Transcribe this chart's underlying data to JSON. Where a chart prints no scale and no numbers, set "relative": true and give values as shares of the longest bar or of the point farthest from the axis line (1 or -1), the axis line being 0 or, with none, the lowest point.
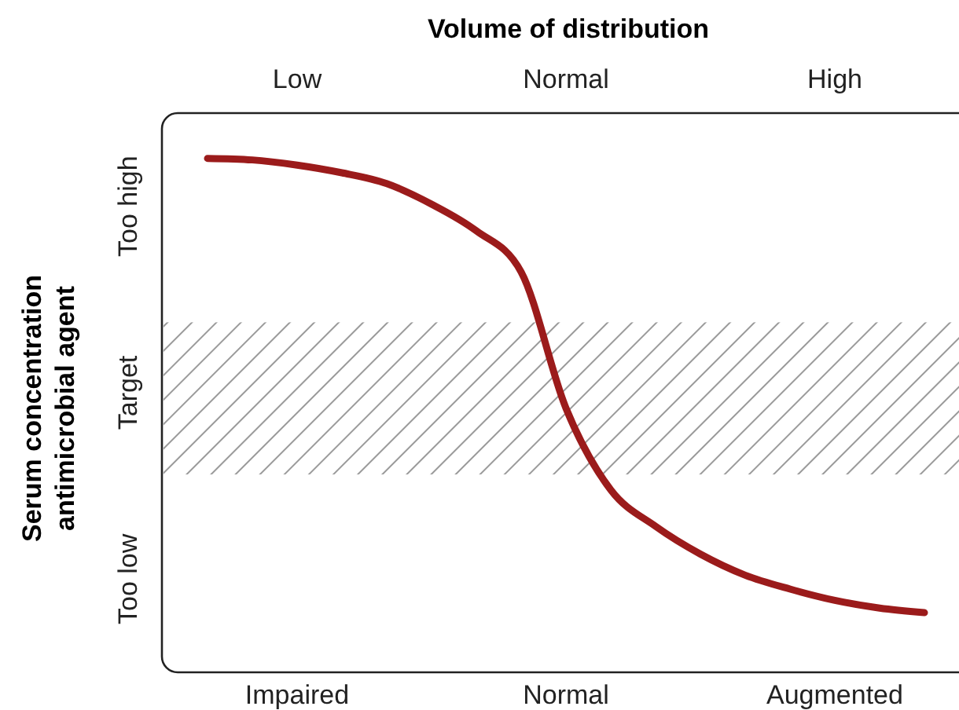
{
  "chart_data": {
    "type": "line",
    "relative": true,
    "x2label": "Volume of distribution",
    "ylabel": "Serum concentration\nantimicrobial agent",
    "categories": [
      null,
      null,
      "Impaired",
      null,
      null,
      null,
      null,
      null,
      "Normal",
      null,
      null,
      null,
      null,
      null,
      "Augmented",
      null,
      null
    ],
    "annotations": [
      "Low",
      "Normal",
      "High"
    ],
    "y_categories": [
      "Too high",
      "Target",
      "Too low"
    ],
    "values": [
      1,
      0.997,
      0.987,
      0.972,
      0.951,
      0.911,
      0.859,
      0.779,
      0.514,
      0.355,
      0.284,
      0.23,
      0.189,
      0.162,
      0.14,
      0.125,
      0.116
    ],
    "color": "#9b1b1b",
    "bands": [
      {
        "axis": "y",
        "from": 0.385,
        "to": 0.681,
        "label": null,
        "color": "#9a9a9a"
      }
    ]
  }
}
